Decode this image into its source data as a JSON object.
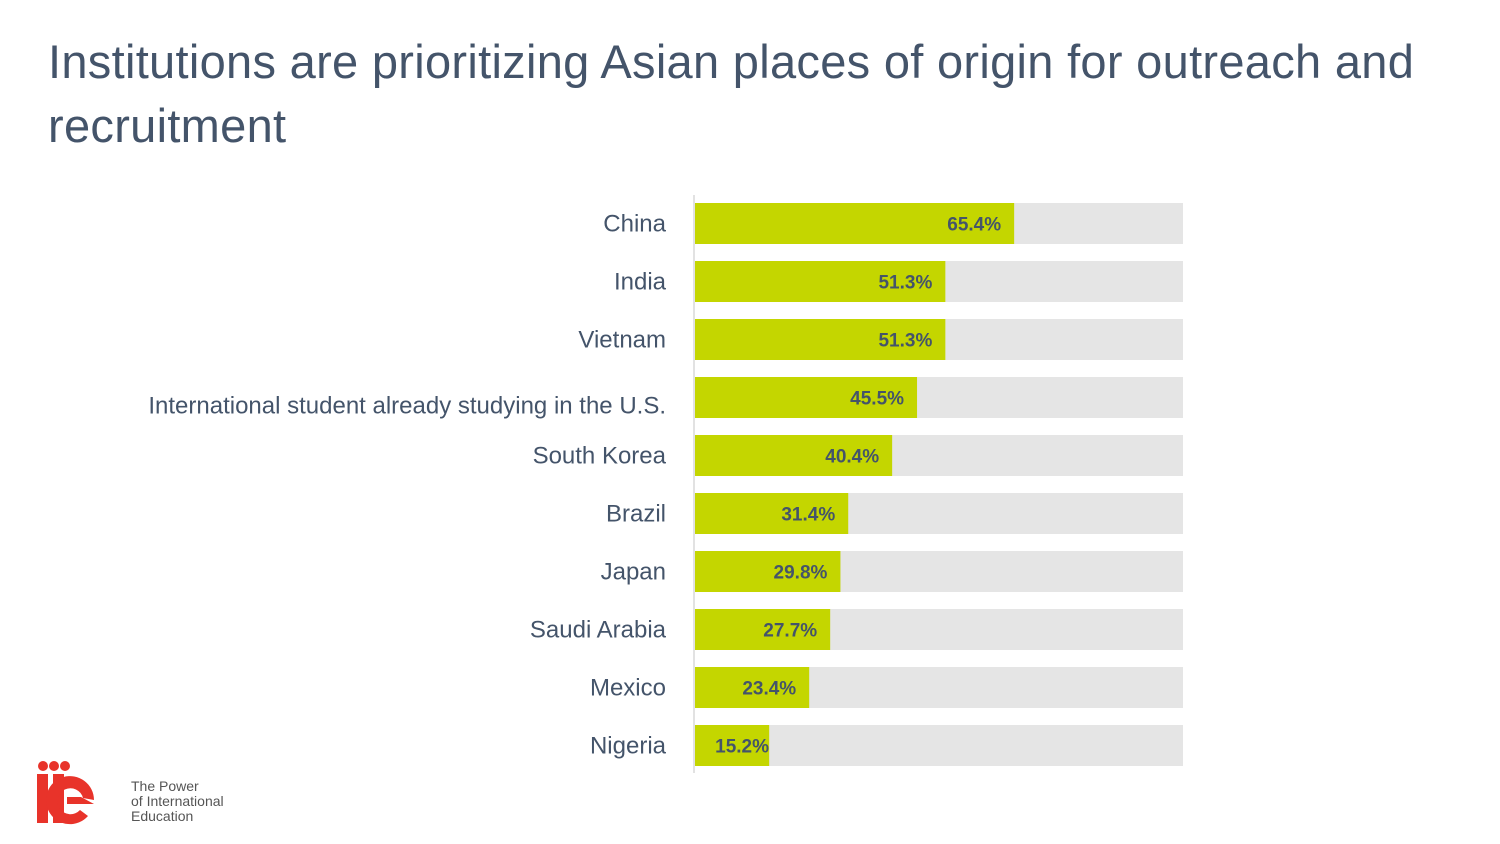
{
  "title": "Institutions are prioritizing Asian places of origin for outreach and recruitment",
  "logo": {
    "text": "iie",
    "tagline": [
      "The Power",
      "of International",
      "Education"
    ],
    "color": "#e8332a"
  },
  "colors": {
    "bar": "#c4d600",
    "track": "#e5e5e5",
    "text": "#44546a"
  },
  "chart_data": {
    "type": "bar",
    "orientation": "horizontal",
    "categories": [
      "China",
      "India",
      "Vietnam",
      "International student already studying in the U.S.",
      "South Korea",
      "Brazil",
      "Japan",
      "Saudi Arabia",
      "Mexico",
      "Nigeria"
    ],
    "values": [
      65.4,
      51.3,
      51.3,
      45.5,
      40.4,
      31.4,
      29.8,
      27.7,
      23.4,
      15.2
    ],
    "labels": [
      "65.4%",
      "51.3%",
      "51.3%",
      "45.5%",
      "40.4%",
      "31.4%",
      "29.8%",
      "27.7%",
      "23.4%",
      "15.2%"
    ],
    "xlim": [
      0,
      100
    ],
    "unit": "%",
    "grid": false
  }
}
